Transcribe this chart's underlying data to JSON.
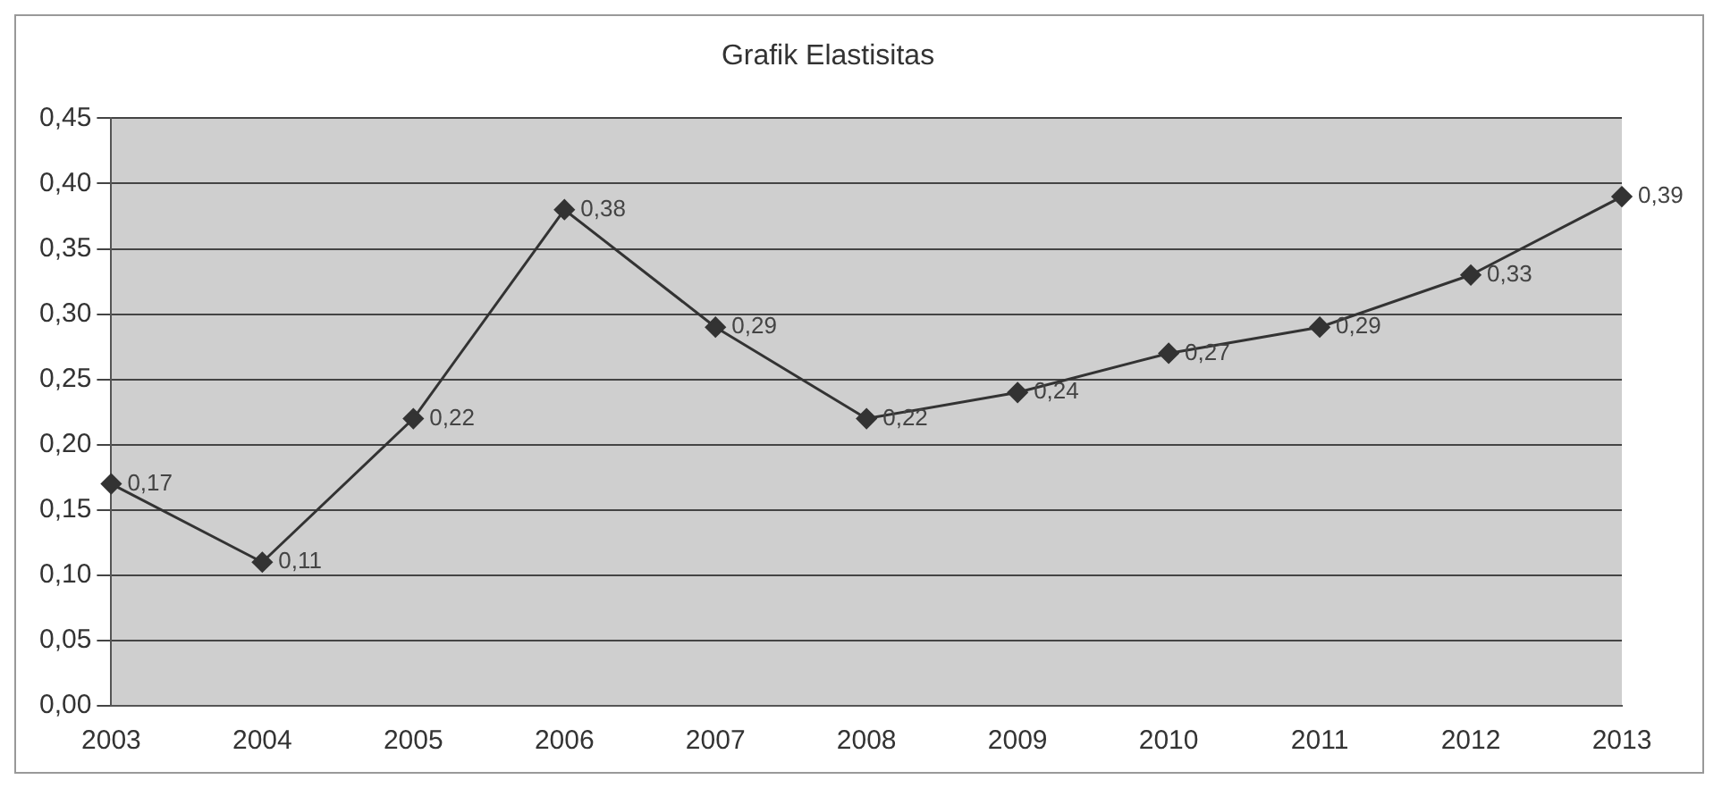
{
  "chart_data": {
    "type": "line",
    "title": "Grafik Elastisitas",
    "categories": [
      "2003",
      "2004",
      "2005",
      "2006",
      "2007",
      "2008",
      "2009",
      "2010",
      "2011",
      "2012",
      "2013"
    ],
    "values": [
      0.17,
      0.11,
      0.22,
      0.38,
      0.29,
      0.22,
      0.24,
      0.27,
      0.29,
      0.33,
      0.39
    ],
    "value_labels": [
      "0,17",
      "0,11",
      "0,22",
      "0,38",
      "0,29",
      "0,22",
      "0,24",
      "0,27",
      "0,29",
      "0,33",
      "0,39"
    ],
    "color": "#333333",
    "marker": "diamond",
    "line_style": "solid",
    "ylim": [
      0,
      0.45
    ],
    "yticks": [
      {
        "value": 0,
        "label": "0,00"
      },
      {
        "value": 0.05,
        "label": "0,05"
      },
      {
        "value": 0.1,
        "label": "0,10"
      },
      {
        "value": 0.15,
        "label": "0,15"
      },
      {
        "value": 0.2,
        "label": "0,20"
      },
      {
        "value": 0.25,
        "label": "0,25"
      },
      {
        "value": 0.3,
        "label": "0,30"
      },
      {
        "value": 0.35,
        "label": "0,35"
      },
      {
        "value": 0.4,
        "label": "0,40"
      },
      {
        "value": 0.45,
        "label": "0,45"
      }
    ],
    "grid": "y",
    "legend": false
  }
}
